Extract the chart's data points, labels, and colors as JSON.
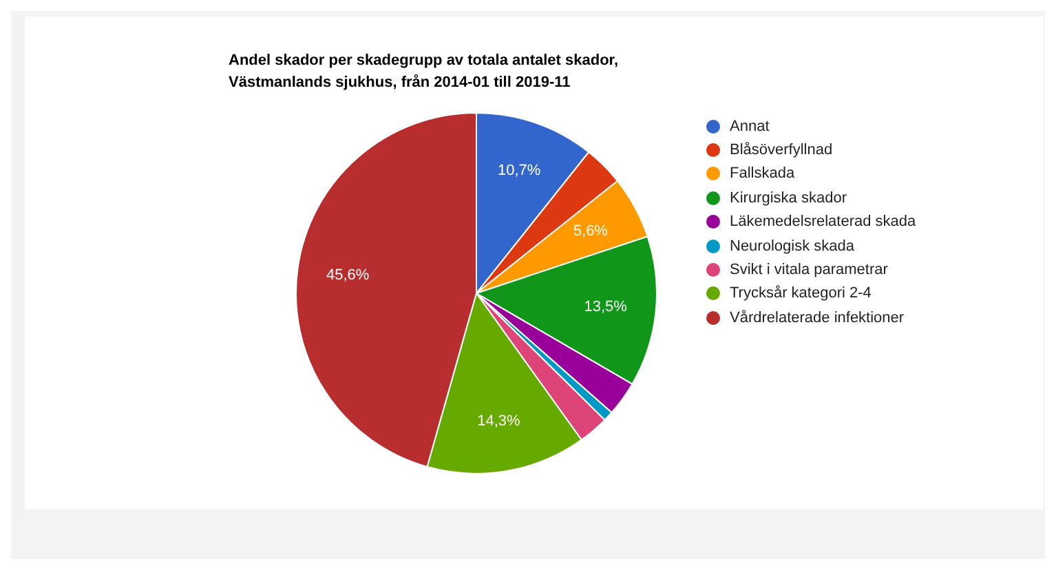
{
  "chart_data": {
    "type": "pie",
    "title": "Andel skador per skadegrupp av totala antalet skador,\nVästmanlands sjukhus, från 2014-01 till 2019-11",
    "categories": [
      "Annat",
      "Blåsöverfyllnad",
      "Fallskada",
      "Kirurgiska skador",
      "Läkemedelsrelaterad skada",
      "Neurologisk skada",
      "Svikt i vitala parametrar",
      "Trycksår kategori 2-4",
      "Vårdrelaterade infektioner"
    ],
    "values": [
      10.7,
      3.6,
      5.6,
      13.5,
      3.1,
      0.9,
      2.7,
      14.3,
      45.6
    ],
    "value_labels": [
      "10,7%",
      null,
      "5,6%",
      "13,5%",
      null,
      null,
      null,
      "14,3%",
      "45,6%"
    ],
    "colors": [
      "#3366cc",
      "#dc3912",
      "#ff9900",
      "#109618",
      "#990099",
      "#0099c6",
      "#dd4477",
      "#66aa00",
      "#b82e2e"
    ],
    "legend": "right"
  }
}
